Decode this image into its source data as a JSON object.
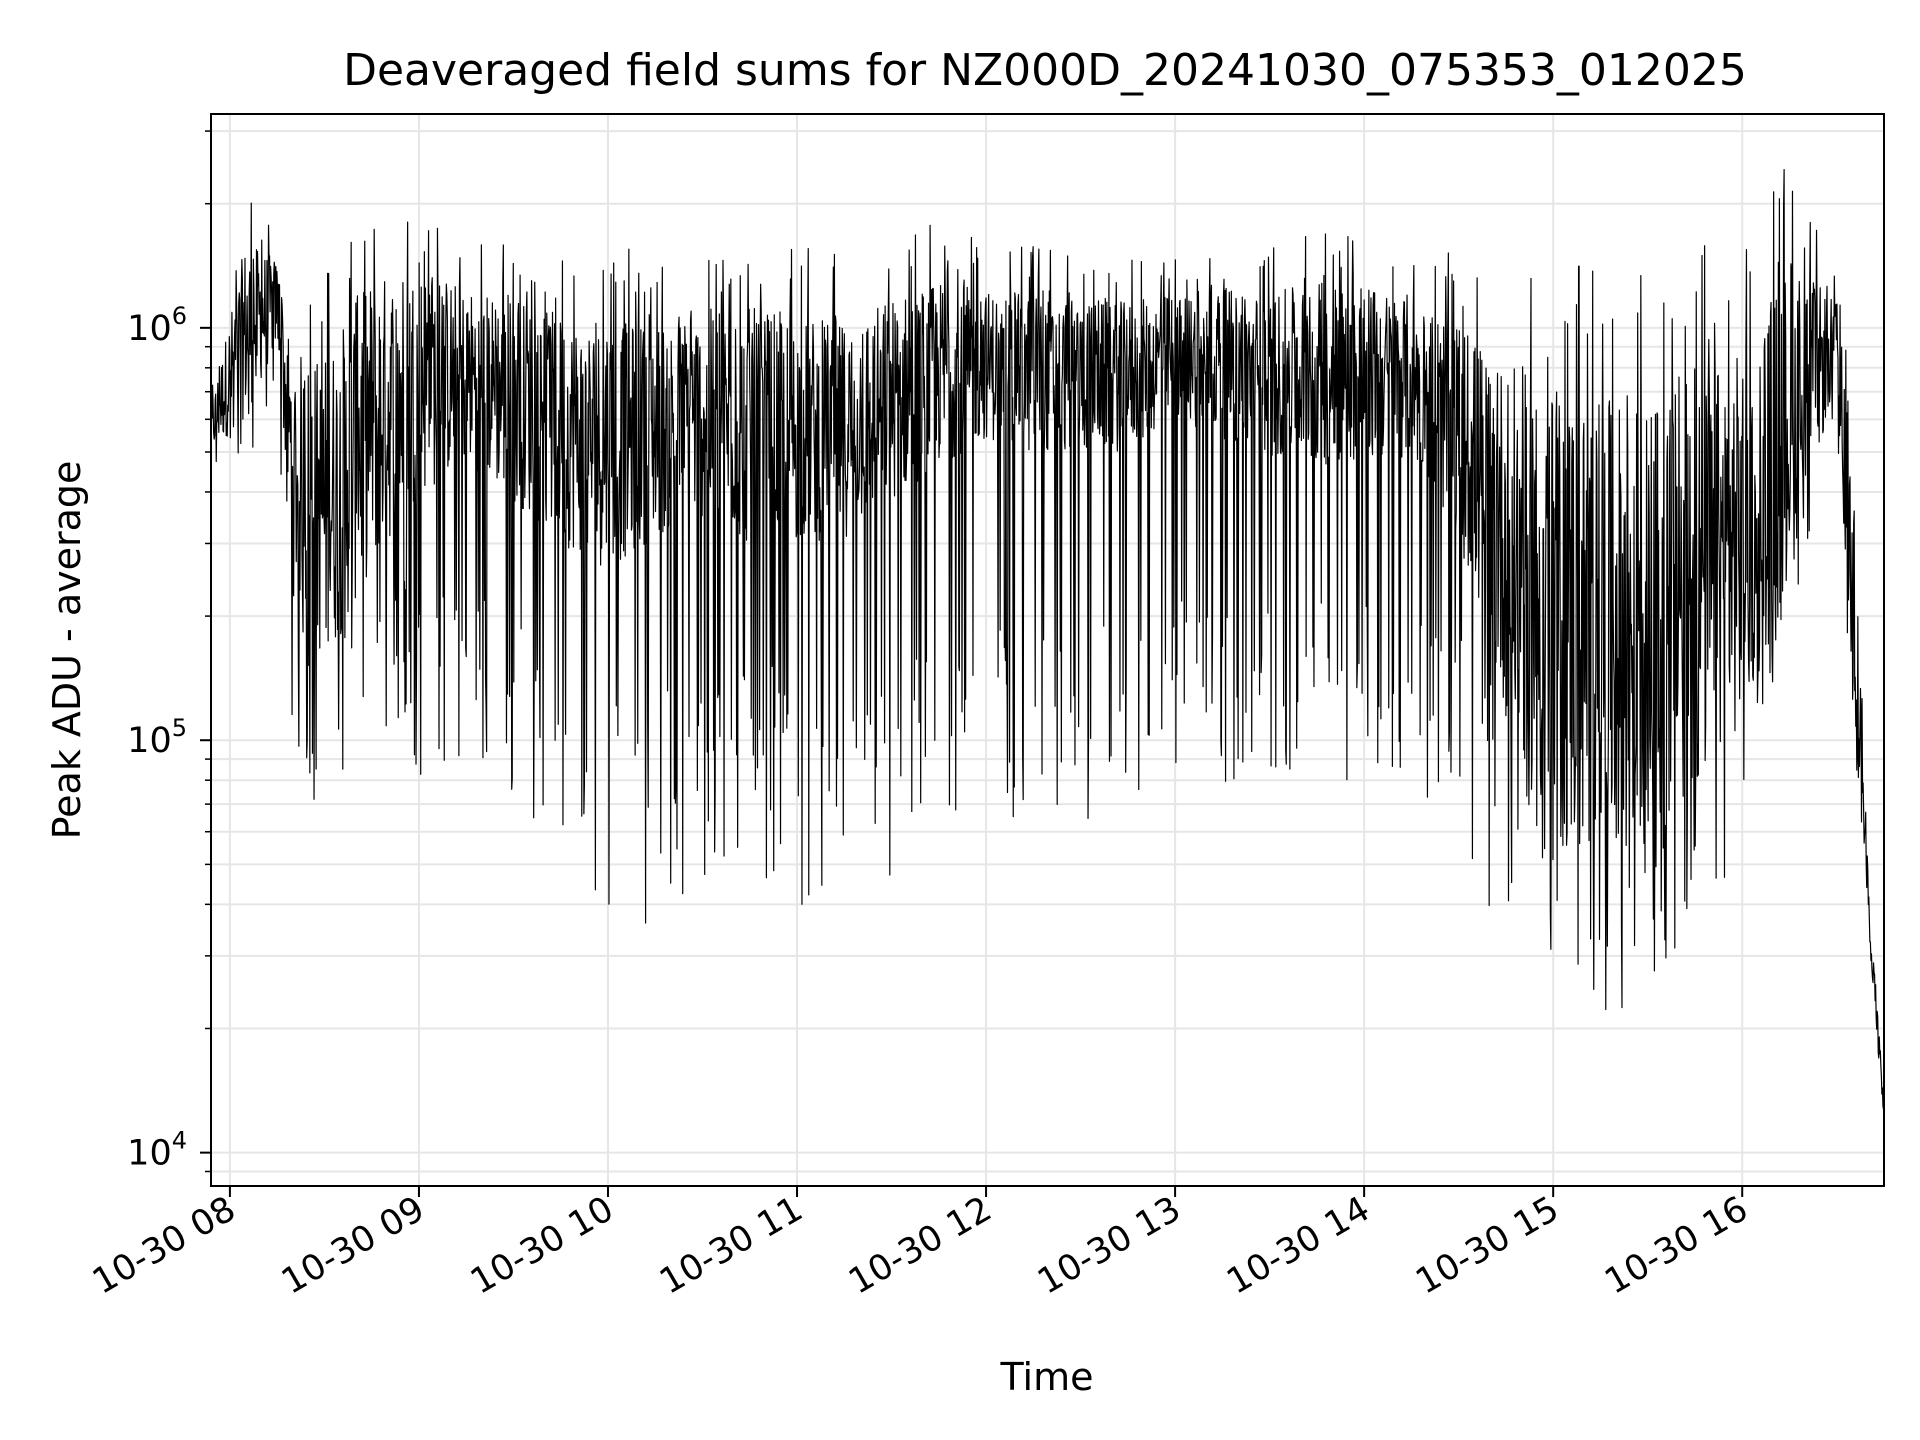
{
  "chart_data": {
    "type": "line",
    "title": "Deaveraged field sums for NZ000D_20241030_075353_012025",
    "xlabel": "Time",
    "ylabel": "Peak ADU - average",
    "yscale": "log",
    "ylim": [
      8300,
      3300000
    ],
    "xlim": [
      "2024-10-30 07:54",
      "2024-10-30 16:45"
    ],
    "grid": true,
    "line_color": "#000000",
    "grid_color": "#e6e6e6",
    "x_ticks": [
      {
        "value": "2024-10-30 08:00",
        "label": "10-30 08"
      },
      {
        "value": "2024-10-30 09:00",
        "label": "10-30 09"
      },
      {
        "value": "2024-10-30 10:00",
        "label": "10-30 10"
      },
      {
        "value": "2024-10-30 11:00",
        "label": "10-30 11"
      },
      {
        "value": "2024-10-30 12:00",
        "label": "10-30 12"
      },
      {
        "value": "2024-10-30 13:00",
        "label": "10-30 13"
      },
      {
        "value": "2024-10-30 14:00",
        "label": "10-30 14"
      },
      {
        "value": "2024-10-30 15:00",
        "label": "10-30 15"
      },
      {
        "value": "2024-10-30 16:00",
        "label": "10-30 16"
      }
    ],
    "y_ticks": [
      {
        "value": 10000,
        "base": "10",
        "exp": "4"
      },
      {
        "value": 100000,
        "base": "10",
        "exp": "5"
      },
      {
        "value": 1000000,
        "base": "10",
        "exp": "6"
      }
    ],
    "series": [
      {
        "x": [
          "2024-10-30 07:54",
          "2024-10-30 08:05",
          "2024-10-30 08:15",
          "2024-10-30 08:20",
          "2024-10-30 08:30",
          "2024-10-30 08:45",
          "2024-10-30 09:00",
          "2024-10-30 09:15",
          "2024-10-30 09:30",
          "2024-10-30 09:45",
          "2024-10-30 10:00",
          "2024-10-30 10:15",
          "2024-10-30 10:30",
          "2024-10-30 10:45",
          "2024-10-30 11:00",
          "2024-10-30 11:15",
          "2024-10-30 11:30",
          "2024-10-30 11:45",
          "2024-10-30 12:00",
          "2024-10-30 12:15",
          "2024-10-30 12:30",
          "2024-10-30 12:45",
          "2024-10-30 13:00",
          "2024-10-30 13:15",
          "2024-10-30 13:30",
          "2024-10-30 13:45",
          "2024-10-30 14:00",
          "2024-10-30 14:15",
          "2024-10-30 14:30",
          "2024-10-30 14:45",
          "2024-10-30 15:00",
          "2024-10-30 15:15",
          "2024-10-30 15:30",
          "2024-10-30 15:45",
          "2024-10-30 16:00",
          "2024-10-30 16:15",
          "2024-10-30 16:30",
          "2024-10-30 16:35",
          "2024-10-30 16:40",
          "2024-10-30 16:45"
        ],
        "y": [
          550000,
          900000,
          1100000,
          400000,
          300000,
          500000,
          650000,
          700000,
          600000,
          500000,
          450000,
          500000,
          550000,
          500000,
          500000,
          500000,
          600000,
          700000,
          750000,
          700000,
          700000,
          700000,
          800000,
          750000,
          700000,
          700000,
          700000,
          700000,
          500000,
          250000,
          150000,
          140000,
          150000,
          180000,
          250000,
          500000,
          900000,
          200000,
          40000,
          12000
        ],
        "lower": [
          420000,
          450000,
          600000,
          90000,
          60000,
          100000,
          80000,
          90000,
          70000,
          50000,
          40000,
          35000,
          40000,
          50000,
          40000,
          35000,
          40000,
          60000,
          70000,
          60000,
          60000,
          70000,
          80000,
          80000,
          70000,
          80000,
          80000,
          80000,
          60000,
          30000,
          25000,
          22000,
          23000,
          30000,
          60000,
          200000,
          500000,
          100000,
          30000,
          11000
        ],
        "upper": [
          700000,
          2200000,
          1700000,
          1300000,
          1500000,
          2200000,
          2200000,
          1700000,
          1700000,
          1600000,
          1600000,
          1500000,
          1600000,
          1700000,
          1600000,
          1500000,
          1700000,
          1800000,
          1600000,
          1600000,
          1500000,
          1500000,
          1500000,
          1600000,
          1600000,
          1800000,
          1700000,
          1600000,
          1500000,
          1500000,
          1600000,
          1500000,
          1400000,
          1600000,
          1700000,
          2600000,
          1300000,
          700000,
          50000,
          14000
        ]
      }
    ]
  }
}
